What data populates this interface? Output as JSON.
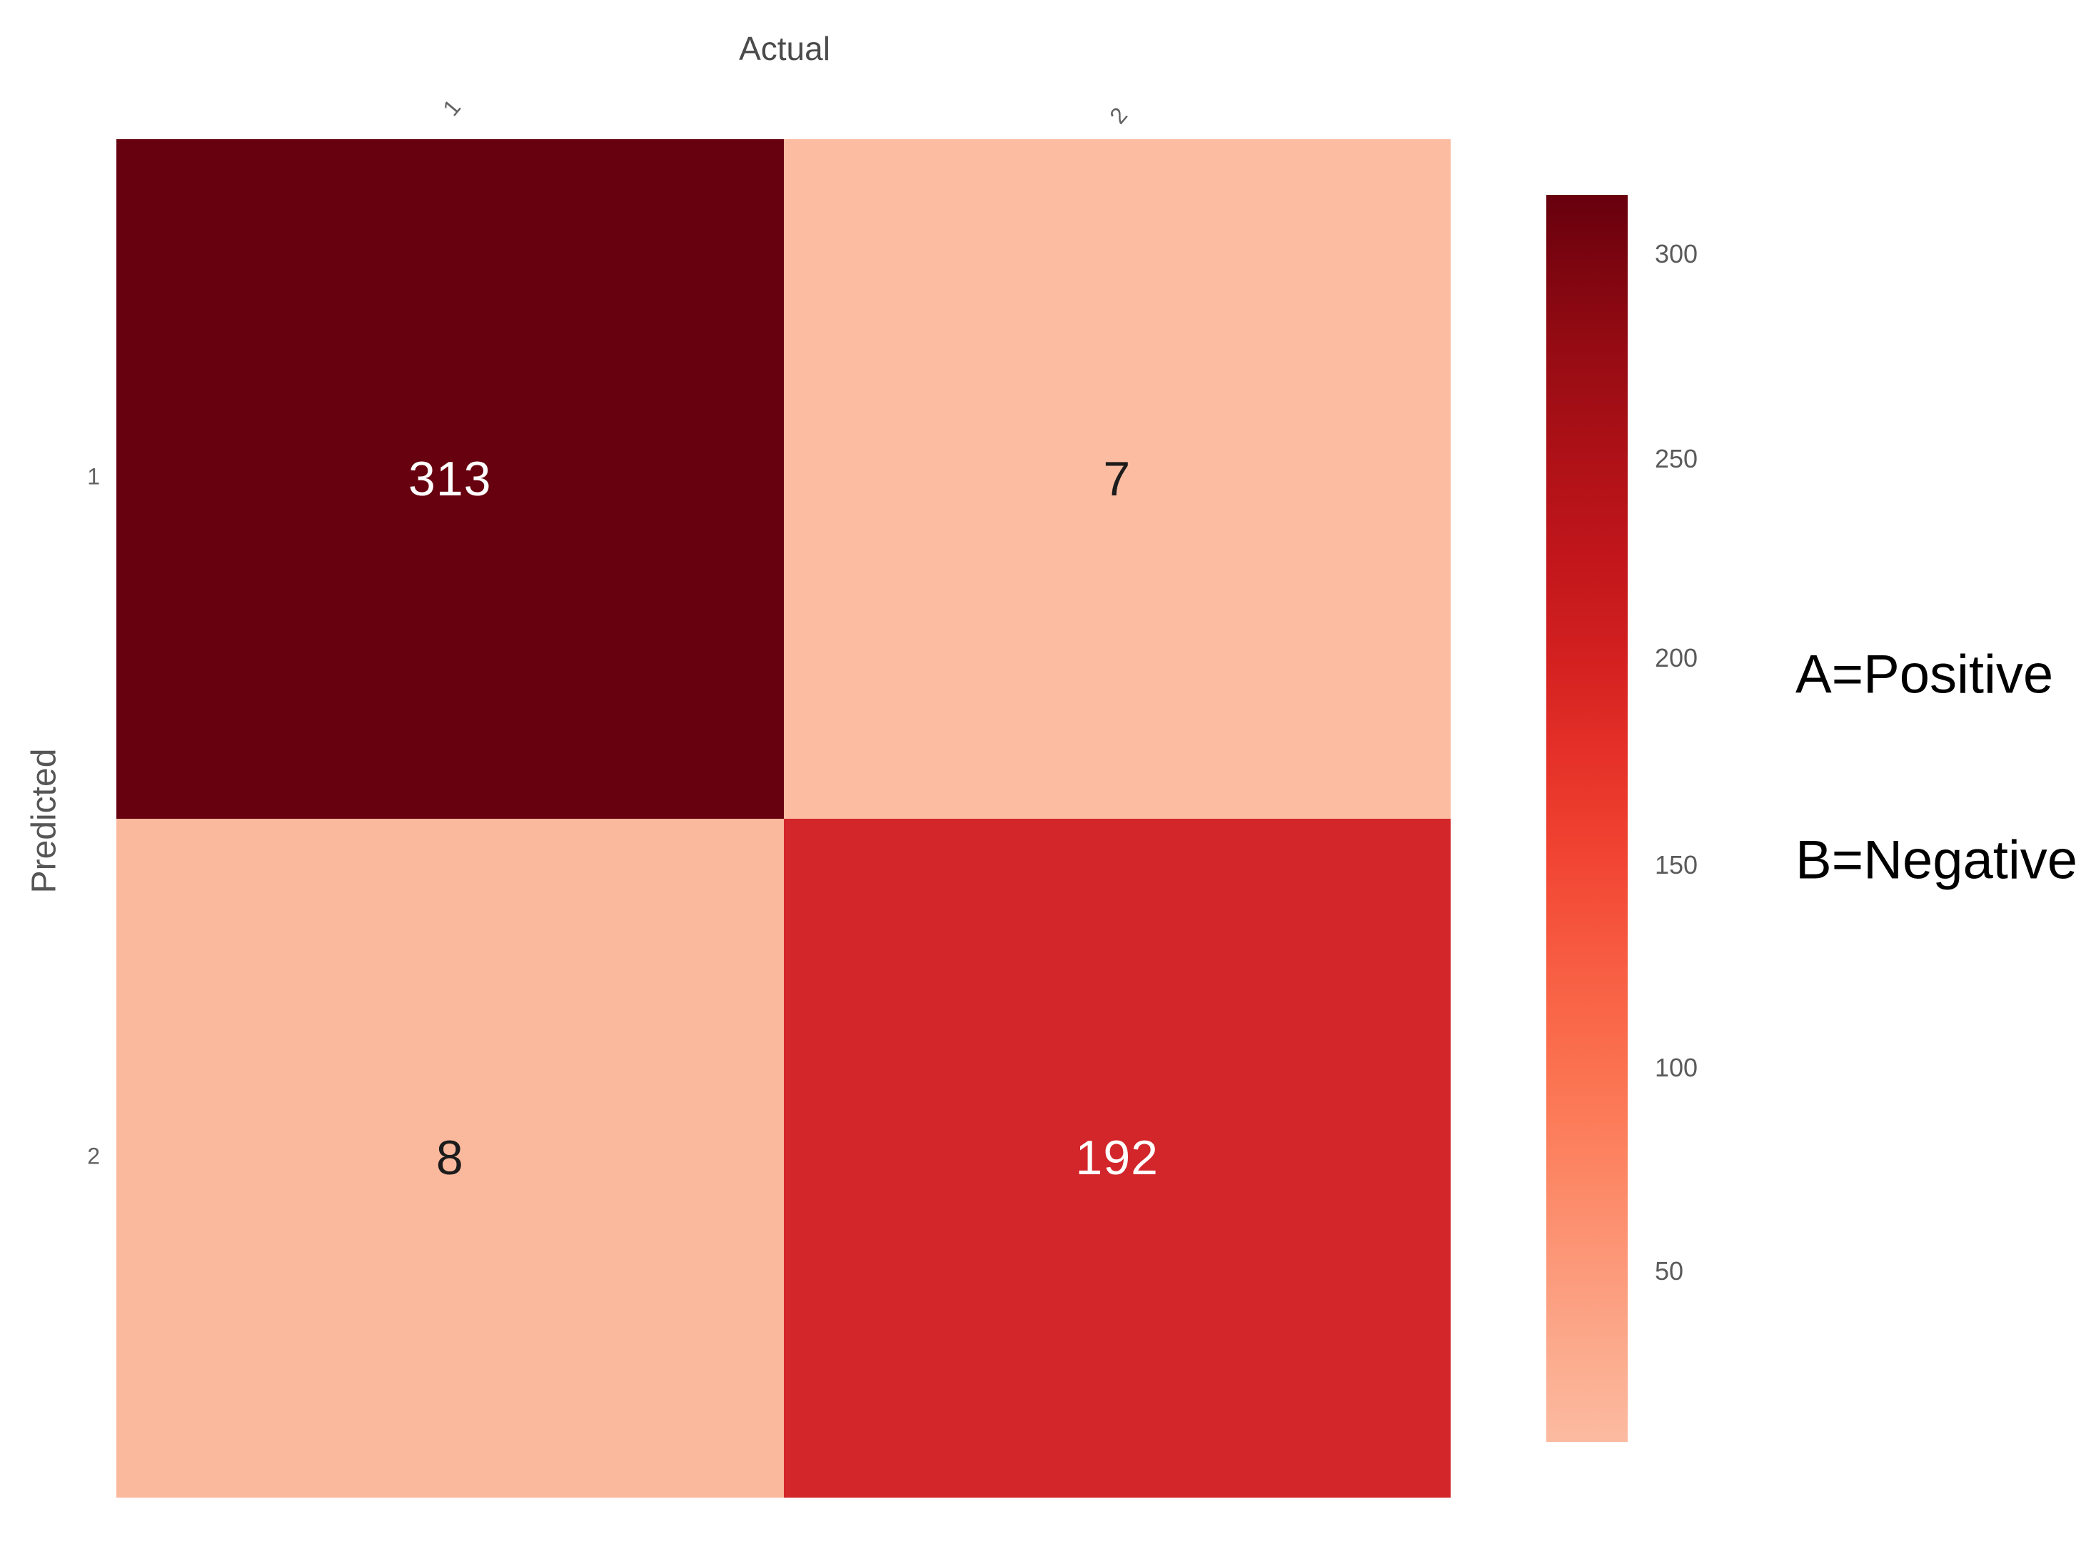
{
  "chart_data": {
    "type": "heatmap",
    "title": "Actual",
    "xlabel": "Actual",
    "ylabel": "Predicted",
    "x_categories": [
      "1",
      "2"
    ],
    "y_categories": [
      "1",
      "2"
    ],
    "values": [
      [
        313,
        7
      ],
      [
        8,
        192
      ]
    ],
    "value_range": [
      7,
      313
    ],
    "colormap": "Reds",
    "grid": false,
    "cell_colors": [
      [
        "#67000f",
        "#fbbca1"
      ],
      [
        "#fab89d",
        "#d2262b"
      ]
    ],
    "cell_text_colors": [
      [
        "#ffffff",
        "#1c1c1c"
      ],
      [
        "#1c1c1c",
        "#ffffff"
      ]
    ],
    "colorbar": {
      "position": "right",
      "ticks": [
        "300",
        "250",
        "200",
        "150",
        "100",
        "50"
      ],
      "top_color": "#67000d",
      "bottom_color": "#fcbba1",
      "gradient": "linear-gradient(to bottom, #67000d 0%, #950b13 12%, #ae1117 21%, #c1161b 29%, #d32020 37%, #e53128 45%, #f14432 53%, #f75b41 61%, #fb714f 70%, #fc8563 78%, #fc997a 86%, #fcad90 94%, #fcbba1 100%)"
    },
    "annotations": [
      {
        "label": "A=Positive"
      },
      {
        "label": "B=Negative"
      }
    ]
  }
}
